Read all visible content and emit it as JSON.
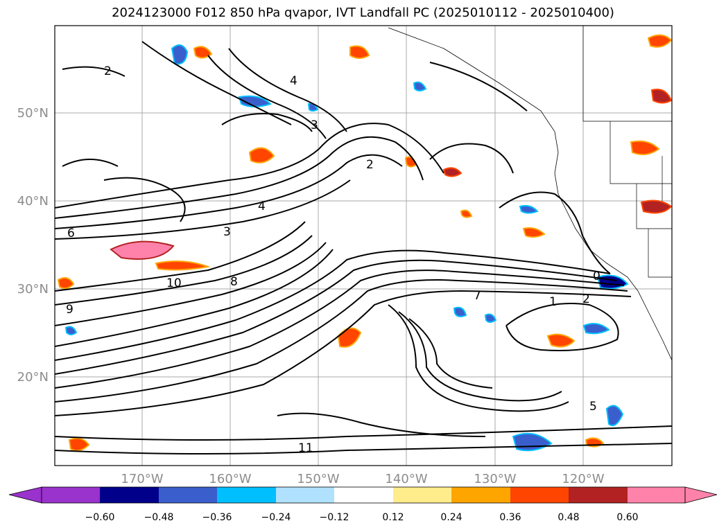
{
  "title": "2024123000 F012 850 hPa qvapor, IVT Landfall PC (2025010112 - 2025010400)",
  "axes": {
    "lon_ticks": [
      "170°W",
      "160°W",
      "150°W",
      "140°W",
      "130°W",
      "120°W"
    ],
    "lat_ticks": [
      "50°N",
      "40°N",
      "30°N",
      "20°N"
    ]
  },
  "colorbar": {
    "ticks": [
      "−0.60",
      "−0.48",
      "−0.36",
      "−0.24",
      "−0.12",
      "0.12",
      "0.24",
      "0.36",
      "0.48",
      "0.60"
    ],
    "colors": [
      "#9a32cd",
      "#00008b",
      "#3a5fcd",
      "#00bfff",
      "#b0e2ff",
      "#ffffff",
      "#ffec8b",
      "#ffa500",
      "#ff4500",
      "#b22222",
      "#ff82ab"
    ]
  },
  "contour_labels": [
    "2",
    "4",
    "3",
    "2",
    "6",
    "10",
    "9",
    "8",
    "1",
    "0",
    "2",
    "4",
    "3",
    "7",
    "11",
    "5"
  ]
}
